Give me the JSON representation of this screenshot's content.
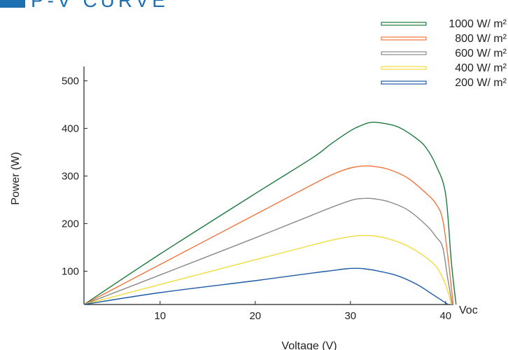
{
  "header": {
    "title": "P-V CURVE"
  },
  "chart_data": {
    "type": "line",
    "title": "P-V CURVE",
    "xlabel": "Voltage (V)",
    "ylabel": "Power (W)",
    "xlim": [
      2,
      43
    ],
    "ylim": [
      30,
      530
    ],
    "x_ticks": [
      10,
      20,
      30,
      40
    ],
    "y_ticks": [
      100,
      200,
      300,
      400,
      500
    ],
    "x_end_label": "Voc",
    "grid": false,
    "legend_position": "top-right",
    "series": [
      {
        "name": "1000 W/ m²",
        "color": "#1e7a3e",
        "points": [
          [
            2,
            30
          ],
          [
            10,
            136
          ],
          [
            20,
            263
          ],
          [
            26,
            338
          ],
          [
            28,
            368
          ],
          [
            30,
            395
          ],
          [
            31,
            405
          ],
          [
            32,
            412
          ],
          [
            33,
            412
          ],
          [
            35,
            403
          ],
          [
            37,
            378
          ],
          [
            38,
            358
          ],
          [
            39,
            322
          ],
          [
            40,
            262
          ],
          [
            40.6,
            120
          ],
          [
            41.1,
            30
          ]
        ]
      },
      {
        "name": "800 W/ m²",
        "color": "#f2743c",
        "points": [
          [
            2,
            30
          ],
          [
            10,
            114
          ],
          [
            20,
            219
          ],
          [
            26,
            282
          ],
          [
            28,
            302
          ],
          [
            29.5,
            314
          ],
          [
            30.5,
            319
          ],
          [
            31.5,
            321
          ],
          [
            32.5,
            320
          ],
          [
            34,
            314
          ],
          [
            36,
            296
          ],
          [
            38,
            263
          ],
          [
            39,
            241
          ],
          [
            39.7,
            208
          ],
          [
            40.3,
            120
          ],
          [
            40.8,
            30
          ]
        ]
      },
      {
        "name": "600 W/ m²",
        "color": "#8a8a8a",
        "points": [
          [
            2,
            30
          ],
          [
            10,
            92
          ],
          [
            20,
            170
          ],
          [
            26,
            218
          ],
          [
            28,
            234
          ],
          [
            29.5,
            245
          ],
          [
            30.5,
            251
          ],
          [
            31.5,
            253
          ],
          [
            32.5,
            252
          ],
          [
            34,
            246
          ],
          [
            36,
            229
          ],
          [
            38,
            196
          ],
          [
            39,
            172
          ],
          [
            39.7,
            150
          ],
          [
            40.2,
            88
          ],
          [
            40.7,
            30
          ]
        ]
      },
      {
        "name": "400 W/ m²",
        "color": "#f2dc3c",
        "points": [
          [
            2,
            30
          ],
          [
            10,
            72
          ],
          [
            20,
            124
          ],
          [
            26,
            155
          ],
          [
            28,
            165
          ],
          [
            29.5,
            171
          ],
          [
            30.5,
            174
          ],
          [
            31.5,
            175
          ],
          [
            32.5,
            174
          ],
          [
            34,
            168
          ],
          [
            36,
            153
          ],
          [
            38,
            128
          ],
          [
            39,
            110
          ],
          [
            39.7,
            86
          ],
          [
            40.2,
            60
          ],
          [
            40.6,
            30
          ]
        ]
      },
      {
        "name": "200 W/ m²",
        "color": "#1f5aa6",
        "points": [
          [
            2,
            30
          ],
          [
            10,
            55
          ],
          [
            20,
            80
          ],
          [
            26,
            96
          ],
          [
            28,
            101
          ],
          [
            29.5,
            105
          ],
          [
            30.5,
            106
          ],
          [
            31.5,
            105
          ],
          [
            33,
            100
          ],
          [
            35,
            90
          ],
          [
            37,
            72
          ],
          [
            38.5,
            53
          ],
          [
            39.5,
            40
          ],
          [
            40.1,
            32
          ],
          [
            40.3,
            30
          ]
        ]
      }
    ]
  }
}
